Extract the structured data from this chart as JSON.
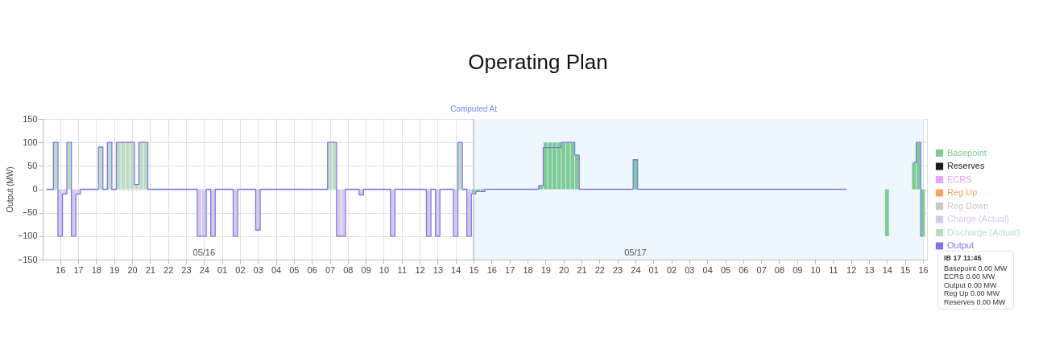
{
  "chart_data": {
    "type": "bar",
    "title": "Operating Plan",
    "ylabel": "Output (MW)",
    "xlim": [
      "--05-15T15:15",
      "--05-17T16:00"
    ],
    "xticks": [
      {
        "value": "--05-15T16:00",
        "label": "16"
      },
      {
        "value": "--05-15T17:00",
        "label": "17"
      },
      {
        "value": "--05-15T18:00",
        "label": "18"
      },
      {
        "value": "--05-15T19:00",
        "label": "19"
      },
      {
        "value": "--05-15T20:00",
        "label": "20"
      },
      {
        "value": "--05-15T21:00",
        "label": "21"
      },
      {
        "value": "--05-15T22:00",
        "label": "22"
      },
      {
        "value": "--05-15T23:00",
        "label": "23"
      },
      {
        "value": "--05-16T00:00",
        "label": "24"
      },
      {
        "value": "--05-16T01:00",
        "label": "01"
      },
      {
        "value": "--05-16T02:00",
        "label": "02"
      },
      {
        "value": "--05-16T03:00",
        "label": "03"
      },
      {
        "value": "--05-16T04:00",
        "label": "04"
      },
      {
        "value": "--05-16T05:00",
        "label": "05"
      },
      {
        "value": "--05-16T06:00",
        "label": "06"
      },
      {
        "value": "--05-16T07:00",
        "label": "07"
      },
      {
        "value": "--05-16T08:00",
        "label": "08"
      },
      {
        "value": "--05-16T09:00",
        "label": "09"
      },
      {
        "value": "--05-16T10:00",
        "label": "10"
      },
      {
        "value": "--05-16T11:00",
        "label": "11"
      },
      {
        "value": "--05-16T12:00",
        "label": "12"
      },
      {
        "value": "--05-16T13:00",
        "label": "13"
      },
      {
        "value": "--05-16T14:00",
        "label": "14"
      },
      {
        "value": "--05-16T15:00",
        "label": "15"
      },
      {
        "value": "--05-16T16:00",
        "label": "16"
      },
      {
        "value": "--05-16T17:00",
        "label": "17"
      },
      {
        "value": "--05-16T18:00",
        "label": "18"
      },
      {
        "value": "--05-16T19:00",
        "label": "19"
      },
      {
        "value": "--05-16T20:00",
        "label": "20"
      },
      {
        "value": "--05-16T21:00",
        "label": "21"
      },
      {
        "value": "--05-16T22:00",
        "label": "22"
      },
      {
        "value": "--05-16T23:00",
        "label": "23"
      },
      {
        "value": "--05-17T00:00",
        "label": "24"
      },
      {
        "value": "--05-17T01:00",
        "label": "01"
      },
      {
        "value": "--05-17T02:00",
        "label": "02"
      },
      {
        "value": "--05-17T03:00",
        "label": "03"
      },
      {
        "value": "--05-17T04:00",
        "label": "04"
      },
      {
        "value": "--05-17T05:00",
        "label": "05"
      },
      {
        "value": "--05-17T06:00",
        "label": "06"
      },
      {
        "value": "--05-17T07:00",
        "label": "07"
      },
      {
        "value": "--05-17T08:00",
        "label": "08"
      },
      {
        "value": "--05-17T09:00",
        "label": "09"
      },
      {
        "value": "--05-17T10:00",
        "label": "10"
      },
      {
        "value": "--05-17T11:00",
        "label": "11"
      },
      {
        "value": "--05-17T12:00",
        "label": "12"
      },
      {
        "value": "--05-17T13:00",
        "label": "13"
      },
      {
        "value": "--05-17T14:00",
        "label": "14"
      },
      {
        "value": "--05-17T15:00",
        "label": "15"
      },
      {
        "value": "--05-17T16:00",
        "label": "16"
      }
    ],
    "ylim": [
      -150,
      150
    ],
    "yticks": [
      -150,
      -100,
      -50,
      0,
      50,
      100,
      150
    ],
    "grid": true,
    "legend": "right",
    "series": [
      {
        "name": "Basepoint",
        "color": "#7dcb95",
        "x": [
          "--05-16T15:00",
          "--05-16T15:15",
          "--05-16T15:30",
          "--05-16T18:45",
          "--05-16T19:00",
          "--05-16T19:15",
          "--05-16T19:30",
          "--05-16T19:45",
          "--05-16T20:00",
          "--05-16T20:15",
          "--05-16T20:30",
          "--05-16T20:45",
          "--05-17T00:00",
          "--05-17T14:00",
          "--05-17T15:30",
          "--05-17T15:45",
          "--05-17T16:00"
        ],
        "values": [
          -10,
          -5,
          -5,
          8,
          100,
          100,
          100,
          100,
          100,
          100,
          100,
          73,
          63,
          -100,
          57,
          100,
          -100
        ]
      },
      {
        "name": "Reserves",
        "color": "#1a1a1a"
      },
      {
        "name": "ECRS",
        "color": "#e3a6f2"
      },
      {
        "name": "Reg Up",
        "color": "#f6a466"
      },
      {
        "name": "Reg Down",
        "color": "#c9c9c9"
      },
      {
        "name": "Charge (Actual)",
        "color": "#d7c8ee",
        "x": [
          "--05-15T16:00",
          "--05-15T16:15",
          "--05-15T16:45",
          "--05-15T17:00",
          "--05-15T23:45",
          "--05-16T00:00",
          "--05-16T00:30",
          "--05-16T01:45",
          "--05-16T03:00",
          "--05-16T07:30",
          "--05-16T07:45",
          "--05-16T08:45",
          "--05-16T10:30",
          "--05-16T12:30",
          "--05-16T13:00",
          "--05-16T14:00",
          "--05-16T14:45"
        ],
        "values": [
          -100,
          -10,
          -100,
          -10,
          -100,
          -100,
          -100,
          -100,
          -87,
          -100,
          -100,
          -12,
          -100,
          -100,
          -100,
          -100,
          -100
        ]
      },
      {
        "name": "Discharge (Actual)",
        "color": "#bcdcc5",
        "x": [
          "--05-15T15:45",
          "--05-15T16:30",
          "--05-15T18:15",
          "--05-15T18:45",
          "--05-15T19:15",
          "--05-15T19:30",
          "--05-15T19:45",
          "--05-15T20:00",
          "--05-15T20:15",
          "--05-15T20:30",
          "--05-15T20:45",
          "--05-16T07:00",
          "--05-16T07:15",
          "--05-16T14:15"
        ],
        "values": [
          100,
          100,
          90,
          100,
          100,
          100,
          100,
          100,
          10,
          100,
          100,
          100,
          100,
          100
        ]
      },
      {
        "name": "Output",
        "color": "#7b78e6",
        "type": "step",
        "x": [
          "--05-15T15:15",
          "--05-15T15:30",
          "--05-15T15:45",
          "--05-15T16:00",
          "--05-15T16:15",
          "--05-15T16:30",
          "--05-15T16:45",
          "--05-15T17:00",
          "--05-15T17:15",
          "--05-15T18:00",
          "--05-15T18:15",
          "--05-15T18:30",
          "--05-15T18:45",
          "--05-15T19:00",
          "--05-15T19:15",
          "--05-15T20:00",
          "--05-15T20:15",
          "--05-15T20:30",
          "--05-15T20:45",
          "--05-15T21:00",
          "--05-15T23:30",
          "--05-15T23:45",
          "--05-16T00:00",
          "--05-16T00:15",
          "--05-16T00:30",
          "--05-16T00:45",
          "--05-16T01:30",
          "--05-16T01:45",
          "--05-16T02:00",
          "--05-16T02:45",
          "--05-16T03:00",
          "--05-16T03:15",
          "--05-16T06:45",
          "--05-16T07:00",
          "--05-16T07:15",
          "--05-16T07:30",
          "--05-16T07:45",
          "--05-16T08:00",
          "--05-16T08:30",
          "--05-16T08:45",
          "--05-16T09:00",
          "--05-16T10:15",
          "--05-16T10:30",
          "--05-16T10:45",
          "--05-16T12:15",
          "--05-16T12:30",
          "--05-16T12:45",
          "--05-16T13:00",
          "--05-16T13:15",
          "--05-16T13:45",
          "--05-16T14:00",
          "--05-16T14:15",
          "--05-16T14:30",
          "--05-16T14:45",
          "--05-16T15:00",
          "--05-16T15:15",
          "--05-16T15:30",
          "--05-16T15:45",
          "--05-16T18:30",
          "--05-16T18:45",
          "--05-16T19:00",
          "--05-16T19:45",
          "--05-16T20:00",
          "--05-16T20:30",
          "--05-16T20:45",
          "--05-16T21:00",
          "--05-16T23:45",
          "--05-17T00:00",
          "--05-17T00:15",
          "--05-17T11:45",
          "--05-17T12:00",
          "--05-17T15:30",
          "--05-17T15:45",
          "--05-17T16:00"
        ],
        "values": [
          0,
          0,
          100,
          -100,
          -10,
          100,
          -100,
          -10,
          0,
          0,
          90,
          0,
          100,
          0,
          100,
          100,
          10,
          100,
          100,
          0,
          0,
          -100,
          -100,
          0,
          -100,
          0,
          0,
          -100,
          0,
          0,
          -87,
          0,
          0,
          100,
          100,
          -100,
          -100,
          0,
          0,
          -12,
          0,
          0,
          -100,
          0,
          0,
          -100,
          0,
          -100,
          0,
          0,
          -100,
          100,
          0,
          -100,
          -10,
          -5,
          -5,
          0,
          0,
          8,
          89,
          89,
          100,
          100,
          73,
          0,
          0,
          63,
          0,
          0,
          null,
          57,
          100,
          -100
        ]
      }
    ],
    "ref_lines": [
      {
        "axis": "x",
        "value": "--05-16T15:00",
        "label": "Computed At",
        "color": "#b4c0e4"
      }
    ],
    "bands": [
      {
        "axis": "x",
        "from": "--05-16T15:00",
        "to": "--05-17T16:00",
        "color": "#eef7fd"
      }
    ],
    "annotations": [
      "05/16",
      "05/17",
      "IB 17 11:45",
      "Basepoint 0.00 MW",
      "ECRS 0.00 MW",
      "Output 0.00 MW",
      "Reg Up 0.00 MW",
      "Reserves 0.00 MW"
    ]
  }
}
